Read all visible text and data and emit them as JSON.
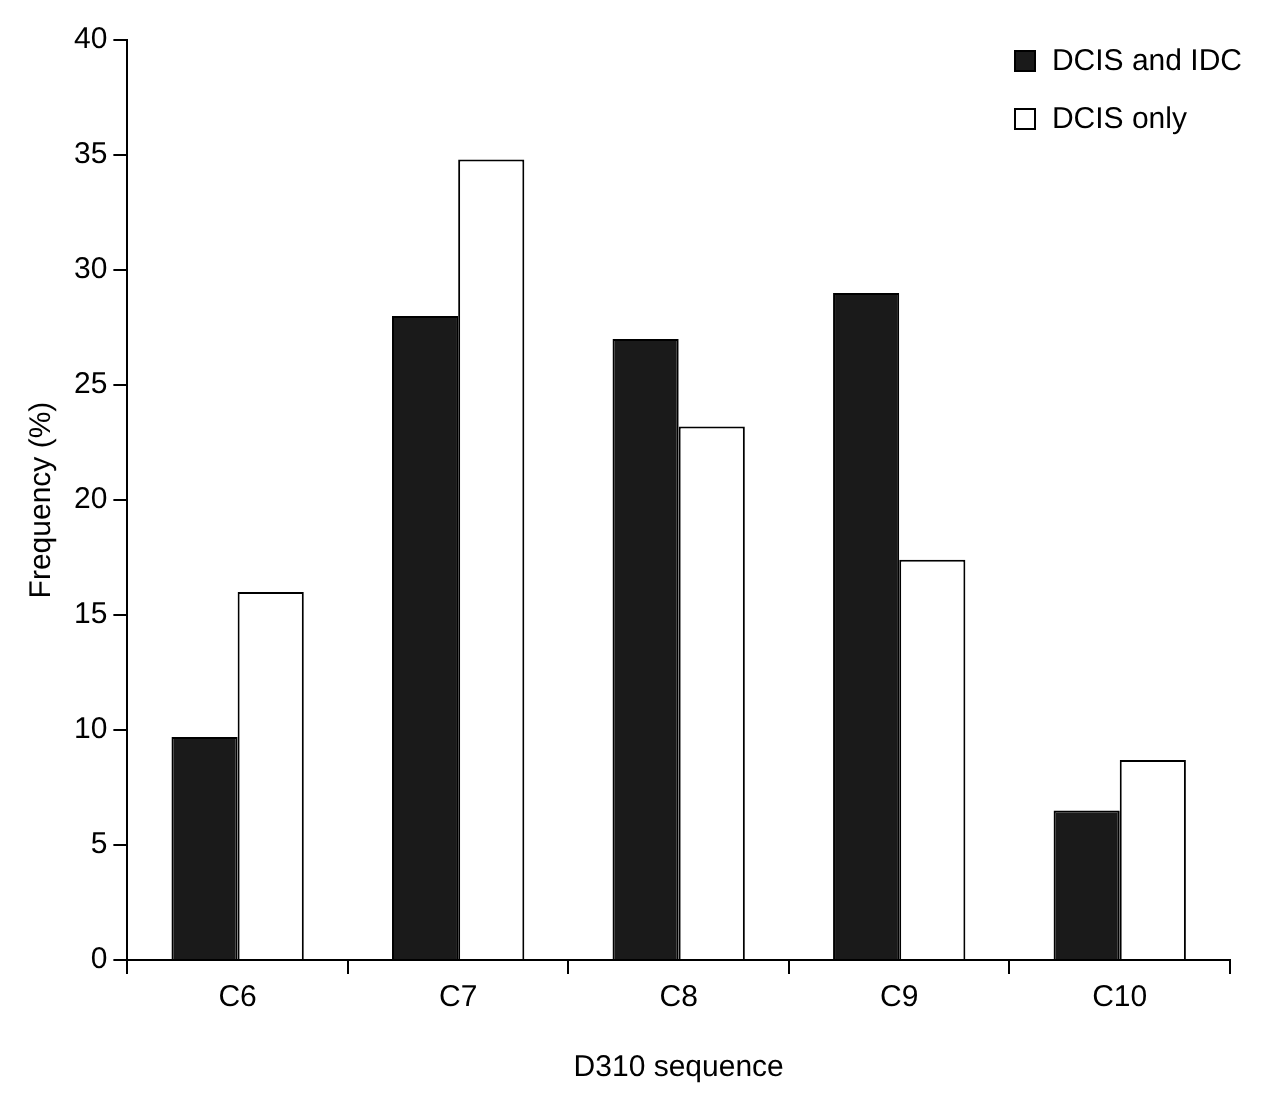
{
  "chart_data": {
    "type": "bar",
    "xlabel": "D310 sequence",
    "ylabel": "Frequency (%)",
    "categories": [
      "C6",
      "C7",
      "C8",
      "C9",
      "C10"
    ],
    "series": [
      {
        "name": "DCIS and IDC",
        "color": "#1a1a1a",
        "values": [
          9.7,
          28,
          27,
          29,
          6.5
        ]
      },
      {
        "name": "DCIS only",
        "color": "#ffffff",
        "values": [
          16,
          34.8,
          23.2,
          17.4,
          8.7
        ]
      }
    ],
    "ylim": [
      0,
      40
    ],
    "yticks": [
      0,
      5,
      10,
      15,
      20,
      25,
      30,
      35,
      40
    ],
    "grid": false,
    "legend": "top right"
  }
}
